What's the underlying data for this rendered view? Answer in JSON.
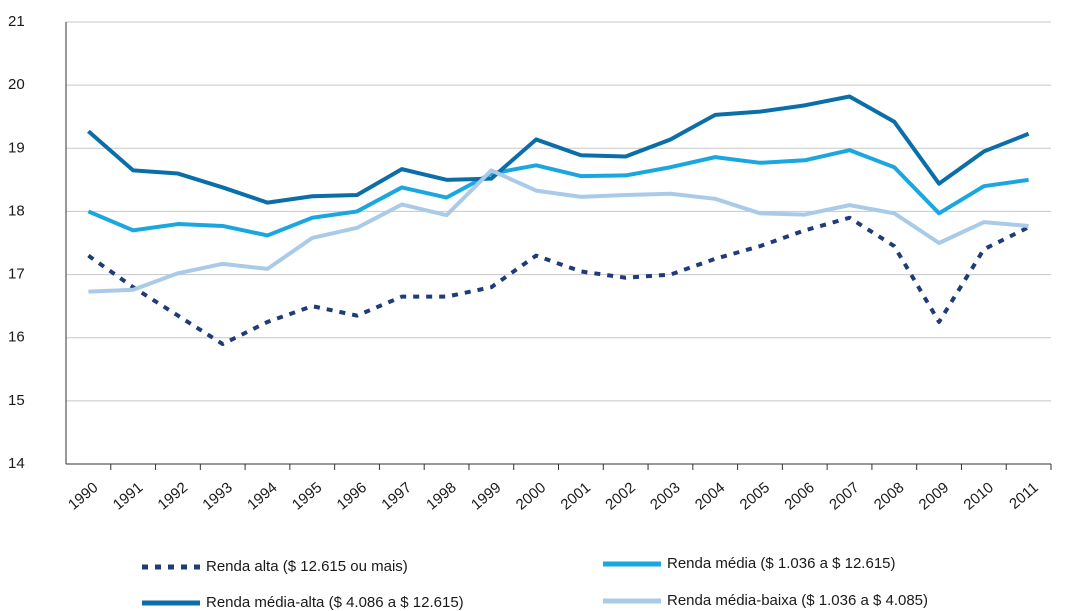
{
  "chart_data": {
    "type": "line",
    "categories": [
      "1990",
      "1991",
      "1992",
      "1993",
      "1994",
      "1995",
      "1996",
      "1997",
      "1998",
      "1999",
      "2000",
      "2001",
      "2002",
      "2003",
      "2004",
      "2005",
      "2006",
      "2007",
      "2008",
      "2009",
      "2010",
      "2011"
    ],
    "series": [
      {
        "name": "Renda alta ($ 12.615 ou mais)",
        "color": "#1f3b78",
        "line_style": "dotted",
        "values": [
          17.3,
          16.8,
          16.35,
          15.9,
          16.25,
          16.5,
          16.35,
          16.65,
          16.65,
          16.8,
          17.3,
          17.05,
          16.95,
          17.0,
          17.25,
          17.45,
          17.7,
          17.9,
          17.45,
          16.25,
          17.4,
          17.75
        ]
      },
      {
        "name": "Renda média ($ 1.036 a $ 12.615)",
        "color": "#1aa7e0",
        "line_style": "solid",
        "values": [
          18.0,
          17.7,
          17.8,
          17.77,
          17.62,
          17.9,
          18.0,
          18.38,
          18.22,
          18.6,
          18.73,
          18.56,
          18.57,
          18.7,
          18.86,
          18.77,
          18.81,
          18.97,
          18.7,
          17.97,
          18.4,
          18.5
        ]
      },
      {
        "name": "Renda média-alta ($ 4.086 a $ 12.615)",
        "color": "#0c6ea8",
        "line_style": "solid",
        "values": [
          19.27,
          18.65,
          18.6,
          18.38,
          18.14,
          18.24,
          18.26,
          18.67,
          18.5,
          18.52,
          19.14,
          18.89,
          18.87,
          19.14,
          19.53,
          19.58,
          19.68,
          19.82,
          19.42,
          18.44,
          18.95,
          19.23
        ]
      },
      {
        "name": "Renda média-baixa ($ 1.036 a $ 4.085)",
        "color": "#a9cbe8",
        "line_style": "solid",
        "values": [
          16.73,
          16.76,
          17.02,
          17.17,
          17.09,
          17.58,
          17.74,
          18.11,
          17.94,
          18.65,
          18.33,
          18.23,
          18.26,
          18.28,
          18.2,
          17.97,
          17.95,
          18.1,
          17.97,
          17.5,
          17.83,
          17.77
        ]
      }
    ],
    "ylim": [
      14,
      21
    ],
    "yticks": [
      14,
      15,
      16,
      17,
      18,
      19,
      20,
      21
    ],
    "grid": true
  }
}
